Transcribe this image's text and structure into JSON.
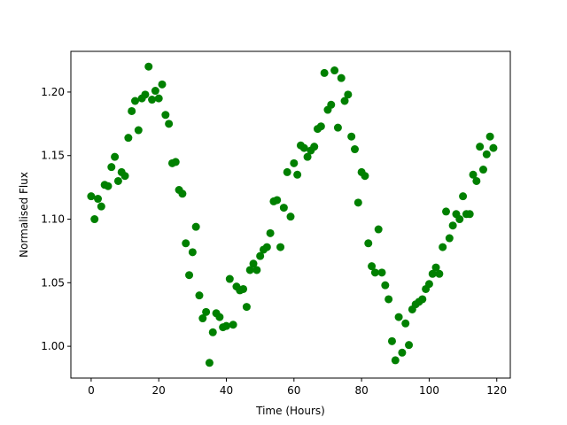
{
  "chart_data": {
    "type": "scatter",
    "title": "",
    "xlabel": "Time (Hours)",
    "ylabel": "Normalised Flux",
    "xlim": [
      -6,
      124
    ],
    "ylim": [
      0.975,
      1.232
    ],
    "xticks": [
      0,
      20,
      40,
      60,
      80,
      100,
      120
    ],
    "xtick_labels": [
      "0",
      "20",
      "40",
      "60",
      "80",
      "100",
      "120"
    ],
    "yticks": [
      1.0,
      1.05,
      1.1,
      1.15,
      1.2
    ],
    "ytick_labels": [
      "1.00",
      "1.05",
      "1.10",
      "1.15",
      "1.20"
    ],
    "grid": false,
    "legend": "none",
    "marker_color": "#008000",
    "series": [
      {
        "x": [
          0,
          1,
          2,
          3,
          4,
          5,
          6,
          7,
          8,
          9,
          10,
          11,
          12,
          13,
          14,
          15,
          16,
          17,
          18,
          19,
          20,
          21,
          22,
          23,
          24,
          25,
          26,
          27,
          28,
          29,
          30,
          31,
          32,
          33,
          34,
          35,
          36,
          37,
          38,
          39,
          40,
          41,
          42,
          43,
          44,
          45,
          46,
          47,
          48,
          49,
          50,
          51,
          52,
          53,
          54,
          55,
          56,
          57,
          58,
          59,
          60,
          61,
          62,
          63,
          64,
          65,
          66,
          67,
          68,
          69,
          70,
          71,
          72,
          73,
          74,
          75,
          76,
          77,
          78,
          79,
          80,
          81,
          82,
          83,
          84,
          85,
          86,
          87,
          88,
          89,
          90,
          91,
          92,
          93,
          94,
          95,
          96,
          97,
          98,
          99,
          100,
          101,
          102,
          103,
          104,
          105,
          106,
          107,
          108,
          109,
          110,
          111,
          112,
          113,
          114,
          115,
          116,
          117,
          118,
          119
        ],
        "y": [
          1.118,
          1.1,
          1.116,
          1.11,
          1.127,
          1.126,
          1.141,
          1.149,
          1.13,
          1.137,
          1.134,
          1.164,
          1.185,
          1.193,
          1.17,
          1.195,
          1.198,
          1.22,
          1.194,
          1.201,
          1.195,
          1.206,
          1.182,
          1.175,
          1.144,
          1.145,
          1.123,
          1.12,
          1.081,
          1.056,
          1.074,
          1.094,
          1.04,
          1.022,
          1.027,
          0.987,
          1.011,
          1.026,
          1.023,
          1.015,
          1.016,
          1.053,
          1.017,
          1.047,
          1.044,
          1.045,
          1.031,
          1.06,
          1.065,
          1.06,
          1.071,
          1.076,
          1.078,
          1.089,
          1.114,
          1.115,
          1.078,
          1.109,
          1.137,
          1.102,
          1.144,
          1.135,
          1.158,
          1.156,
          1.149,
          1.154,
          1.157,
          1.171,
          1.173,
          1.215,
          1.186,
          1.19,
          1.217,
          1.172,
          1.211,
          1.193,
          1.198,
          1.165,
          1.155,
          1.113,
          1.137,
          1.134,
          1.081,
          1.063,
          1.058,
          1.092,
          1.058,
          1.048,
          1.037,
          1.004,
          0.989,
          1.023,
          0.995,
          1.018,
          1.001,
          1.029,
          1.033,
          1.035,
          1.037,
          1.045,
          1.049,
          1.057,
          1.062,
          1.057,
          1.078,
          1.106,
          1.085,
          1.095,
          1.104,
          1.1,
          1.118,
          1.104,
          1.104,
          1.135,
          1.13,
          1.157,
          1.139,
          1.151,
          1.165,
          1.156
        ]
      }
    ]
  }
}
